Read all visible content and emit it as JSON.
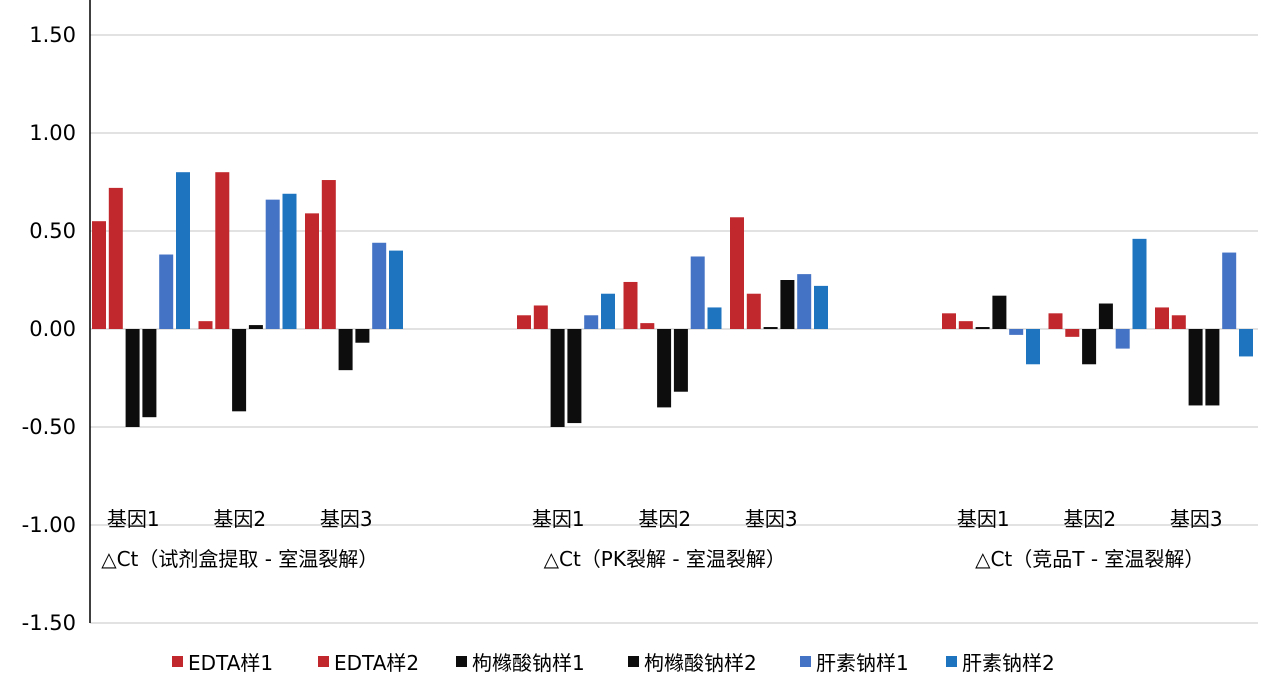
{
  "chart_data": {
    "type": "bar",
    "title": "",
    "xlabel": "",
    "ylabel": "",
    "ylim": [
      -1.5,
      1.5
    ],
    "yticks": [
      "1.50",
      "1.00",
      "0.50",
      "0.00",
      "-0.50",
      "-1.00",
      "-1.50"
    ],
    "grid": true,
    "legend_position": "bottom",
    "groups": [
      {
        "label": "△Ct（试剂盒提取 - 室温裂解）",
        "categories": [
          "基因1",
          "基因2",
          "基因3"
        ]
      },
      {
        "label": "△Ct（PK裂解 - 室温裂解）",
        "categories": [
          "基因1",
          "基因2",
          "基因3"
        ]
      },
      {
        "label": "△Ct（竞品T - 室温裂解）",
        "categories": [
          "基因1",
          "基因2",
          "基因3"
        ]
      }
    ],
    "series": [
      {
        "name": "EDTA样1",
        "color": "#C0282D",
        "values": [
          0.55,
          0.04,
          0.59,
          0.07,
          0.24,
          0.57,
          0.08,
          0.08,
          0.11
        ]
      },
      {
        "name": "EDTA样2",
        "color": "#C0282D",
        "values": [
          0.72,
          0.8,
          0.76,
          0.12,
          0.03,
          0.18,
          0.04,
          -0.04,
          0.07
        ]
      },
      {
        "name": "枸橼酸钠样1",
        "color": "#0d0d0d",
        "values": [
          -0.5,
          -0.42,
          -0.21,
          -0.5,
          -0.4,
          0.01,
          0.01,
          -0.18,
          -0.39
        ]
      },
      {
        "name": "枸橼酸钠样2",
        "color": "#0d0d0d",
        "values": [
          -0.45,
          0.02,
          -0.07,
          -0.48,
          -0.32,
          0.25,
          0.17,
          0.13,
          -0.39
        ]
      },
      {
        "name": "肝素钠样1",
        "color": "#4472C4",
        "values": [
          0.38,
          0.66,
          0.44,
          0.07,
          0.37,
          0.28,
          -0.03,
          -0.1,
          0.39
        ]
      },
      {
        "name": "肝素钠样2",
        "color": "#1F74C0",
        "values": [
          0.8,
          0.69,
          0.4,
          0.18,
          0.11,
          0.22,
          -0.18,
          0.46,
          -0.14
        ]
      }
    ]
  }
}
